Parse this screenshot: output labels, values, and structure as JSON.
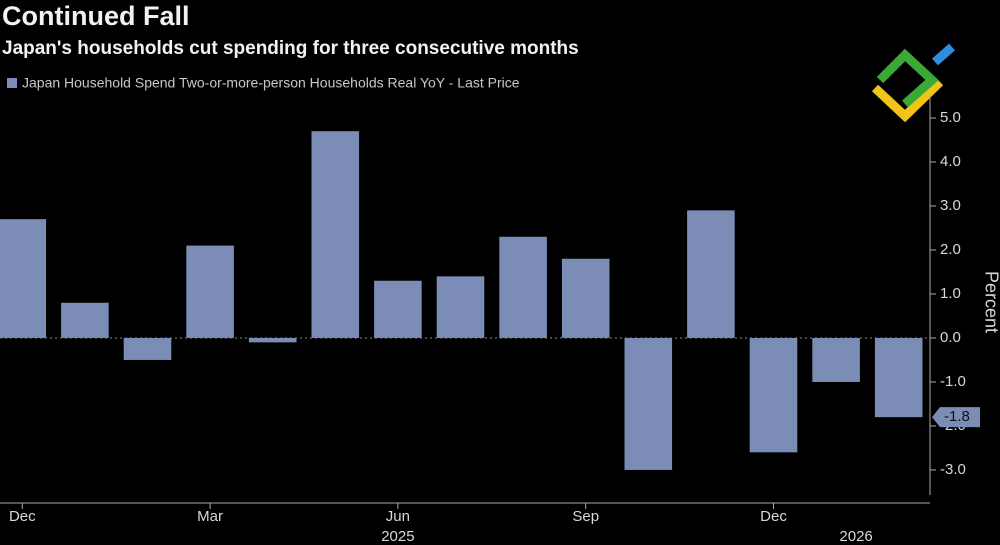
{
  "chart_data": {
    "type": "bar",
    "title": "Continued Fall",
    "subtitle": "Japan's households cut spending for three consecutive months",
    "y_axis_label": "Percent",
    "categories": [
      "Dec",
      null,
      null,
      "Mar",
      null,
      null,
      "Jun",
      null,
      null,
      "Sep",
      null,
      null,
      "Dec",
      null,
      null
    ],
    "year_labels": [
      null,
      null,
      null,
      null,
      null,
      null,
      "2025",
      null,
      null,
      null,
      null,
      null,
      null,
      "2026",
      null
    ],
    "series": [
      {
        "name": "Japan Household Spend Two-or-more-person Households Real YoY - Last Price",
        "color": "#7b8db6",
        "values": [
          2.7,
          0.8,
          -0.5,
          2.1,
          -0.1,
          4.7,
          1.3,
          1.4,
          2.3,
          1.8,
          -3.0,
          2.9,
          -2.6,
          -1.0,
          -1.8
        ],
        "value_labels": [
          null,
          null,
          null,
          null,
          null,
          null,
          null,
          null,
          null,
          null,
          null,
          null,
          null,
          null,
          "-1.8"
        ]
      }
    ],
    "ylim": [
      -3.57,
      5.5
    ],
    "yticks": [
      {
        "value": 5,
        "label": "5.0"
      },
      {
        "value": 4,
        "label": "4.0"
      },
      {
        "value": 3,
        "label": "3.0"
      },
      {
        "value": 2,
        "label": "2.0"
      },
      {
        "value": 1,
        "label": "1.0"
      },
      {
        "value": 0,
        "label": "0.0"
      },
      {
        "value": -1,
        "label": "-1.0"
      },
      {
        "value": -2,
        "label": "-2.0"
      },
      {
        "value": -3,
        "label": "-3.0"
      }
    ],
    "grid": false
  }
}
